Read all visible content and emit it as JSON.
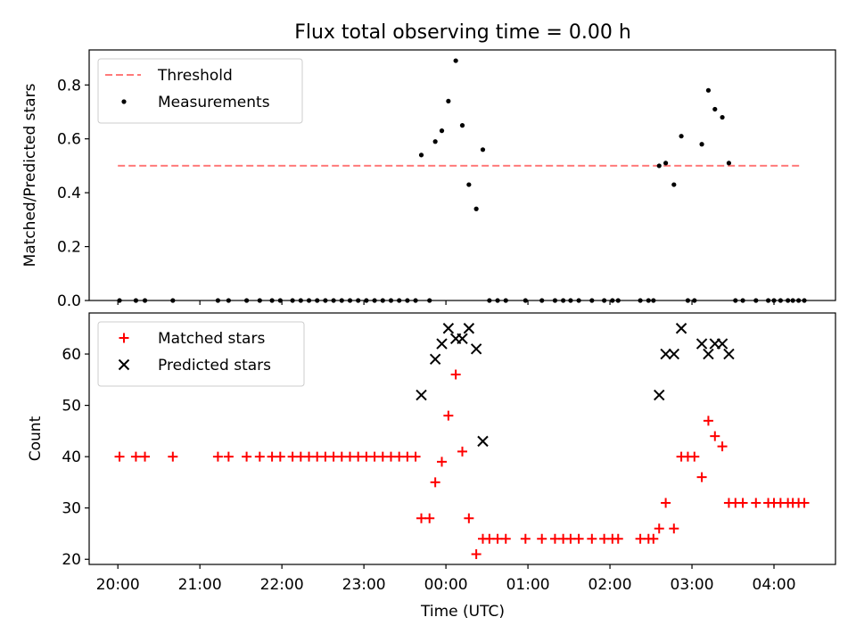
{
  "chart_data": [
    {
      "type": "scatter",
      "title": "Flux total observing time = 0.00 h",
      "xlabel": "",
      "ylabel": "Matched/Predicted stars",
      "xlim": [
        -0.35,
        8.75
      ],
      "ylim": [
        0,
        0.93
      ],
      "yticks": [
        0.0,
        0.2,
        0.4,
        0.6,
        0.8
      ],
      "ytick_labels": [
        "0.0",
        "0.2",
        "0.4",
        "0.6",
        "0.8"
      ],
      "legend_position": "upper-left",
      "threshold": {
        "name": "Threshold",
        "value": 0.5,
        "x_range": [
          0,
          8.33
        ],
        "color": "#ff7a7a",
        "style": "dashed"
      },
      "series": [
        {
          "name": "Measurements",
          "color": "#000000",
          "marker": "dot",
          "points": [
            {
              "x": 0.02,
              "y": 0.0
            },
            {
              "x": 0.22,
              "y": 0.0
            },
            {
              "x": 0.33,
              "y": 0.0
            },
            {
              "x": 0.67,
              "y": 0.0
            },
            {
              "x": 1.22,
              "y": 0.0
            },
            {
              "x": 1.35,
              "y": 0.0
            },
            {
              "x": 1.57,
              "y": 0.0
            },
            {
              "x": 1.73,
              "y": 0.0
            },
            {
              "x": 1.88,
              "y": 0.0
            },
            {
              "x": 1.98,
              "y": 0.0
            },
            {
              "x": 2.13,
              "y": 0.0
            },
            {
              "x": 2.23,
              "y": 0.0
            },
            {
              "x": 2.33,
              "y": 0.0
            },
            {
              "x": 2.43,
              "y": 0.0
            },
            {
              "x": 2.53,
              "y": 0.0
            },
            {
              "x": 2.63,
              "y": 0.0
            },
            {
              "x": 2.73,
              "y": 0.0
            },
            {
              "x": 2.83,
              "y": 0.0
            },
            {
              "x": 2.93,
              "y": 0.0
            },
            {
              "x": 3.03,
              "y": 0.0
            },
            {
              "x": 3.13,
              "y": 0.0
            },
            {
              "x": 3.23,
              "y": 0.0
            },
            {
              "x": 3.33,
              "y": 0.0
            },
            {
              "x": 3.43,
              "y": 0.0
            },
            {
              "x": 3.53,
              "y": 0.0
            },
            {
              "x": 3.63,
              "y": 0.0
            },
            {
              "x": 3.7,
              "y": 0.54
            },
            {
              "x": 3.8,
              "y": 0.0
            },
            {
              "x": 3.87,
              "y": 0.59
            },
            {
              "x": 3.95,
              "y": 0.63
            },
            {
              "x": 4.03,
              "y": 0.74
            },
            {
              "x": 4.12,
              "y": 0.89
            },
            {
              "x": 4.2,
              "y": 0.65
            },
            {
              "x": 4.28,
              "y": 0.43
            },
            {
              "x": 4.37,
              "y": 0.34
            },
            {
              "x": 4.45,
              "y": 0.56
            },
            {
              "x": 4.53,
              "y": 0.0
            },
            {
              "x": 4.63,
              "y": 0.0
            },
            {
              "x": 4.73,
              "y": 0.0
            },
            {
              "x": 4.97,
              "y": 0.0
            },
            {
              "x": 5.17,
              "y": 0.0
            },
            {
              "x": 5.33,
              "y": 0.0
            },
            {
              "x": 5.43,
              "y": 0.0
            },
            {
              "x": 5.52,
              "y": 0.0
            },
            {
              "x": 5.62,
              "y": 0.0
            },
            {
              "x": 5.78,
              "y": 0.0
            },
            {
              "x": 5.93,
              "y": 0.0
            },
            {
              "x": 6.03,
              "y": 0.0
            },
            {
              "x": 6.1,
              "y": 0.0
            },
            {
              "x": 6.37,
              "y": 0.0
            },
            {
              "x": 6.47,
              "y": 0.0
            },
            {
              "x": 6.53,
              "y": 0.0
            },
            {
              "x": 6.6,
              "y": 0.5
            },
            {
              "x": 6.68,
              "y": 0.51
            },
            {
              "x": 6.78,
              "y": 0.43
            },
            {
              "x": 6.87,
              "y": 0.61
            },
            {
              "x": 6.95,
              "y": 0.0
            },
            {
              "x": 7.03,
              "y": 0.0
            },
            {
              "x": 7.12,
              "y": 0.58
            },
            {
              "x": 7.2,
              "y": 0.78
            },
            {
              "x": 7.28,
              "y": 0.71
            },
            {
              "x": 7.37,
              "y": 0.68
            },
            {
              "x": 7.45,
              "y": 0.51
            },
            {
              "x": 7.53,
              "y": 0.0
            },
            {
              "x": 7.62,
              "y": 0.0
            },
            {
              "x": 7.78,
              "y": 0.0
            },
            {
              "x": 7.93,
              "y": 0.0
            },
            {
              "x": 8.0,
              "y": 0.0
            },
            {
              "x": 8.08,
              "y": 0.0
            },
            {
              "x": 8.17,
              "y": 0.0
            },
            {
              "x": 8.23,
              "y": 0.0
            },
            {
              "x": 8.3,
              "y": 0.0
            },
            {
              "x": 8.37,
              "y": 0.0
            }
          ]
        }
      ]
    },
    {
      "type": "scatter",
      "title": "",
      "xlabel": "Time (UTC)",
      "ylabel": "Count",
      "xlim": [
        -0.35,
        8.75
      ],
      "ylim": [
        19,
        68
      ],
      "yticks": [
        20,
        30,
        40,
        50,
        60
      ],
      "ytick_labels": [
        "20",
        "30",
        "40",
        "50",
        "60"
      ],
      "xticks": [
        0,
        1,
        2,
        3,
        4,
        5,
        6,
        7,
        8
      ],
      "xtick_labels": [
        "20:00",
        "21:00",
        "22:00",
        "23:00",
        "00:00",
        "01:00",
        "02:00",
        "03:00",
        "04:00"
      ],
      "legend_position": "upper-left",
      "series": [
        {
          "name": "Matched stars",
          "color": "#ff0000",
          "marker": "plus",
          "points": [
            {
              "x": 0.02,
              "y": 40
            },
            {
              "x": 0.22,
              "y": 40
            },
            {
              "x": 0.33,
              "y": 40
            },
            {
              "x": 0.67,
              "y": 40
            },
            {
              "x": 1.22,
              "y": 40
            },
            {
              "x": 1.35,
              "y": 40
            },
            {
              "x": 1.57,
              "y": 40
            },
            {
              "x": 1.73,
              "y": 40
            },
            {
              "x": 1.88,
              "y": 40
            },
            {
              "x": 1.98,
              "y": 40
            },
            {
              "x": 2.13,
              "y": 40
            },
            {
              "x": 2.23,
              "y": 40
            },
            {
              "x": 2.33,
              "y": 40
            },
            {
              "x": 2.43,
              "y": 40
            },
            {
              "x": 2.53,
              "y": 40
            },
            {
              "x": 2.63,
              "y": 40
            },
            {
              "x": 2.73,
              "y": 40
            },
            {
              "x": 2.83,
              "y": 40
            },
            {
              "x": 2.93,
              "y": 40
            },
            {
              "x": 3.03,
              "y": 40
            },
            {
              "x": 3.13,
              "y": 40
            },
            {
              "x": 3.23,
              "y": 40
            },
            {
              "x": 3.33,
              "y": 40
            },
            {
              "x": 3.43,
              "y": 40
            },
            {
              "x": 3.53,
              "y": 40
            },
            {
              "x": 3.63,
              "y": 40
            },
            {
              "x": 3.7,
              "y": 28
            },
            {
              "x": 3.8,
              "y": 28
            },
            {
              "x": 3.87,
              "y": 35
            },
            {
              "x": 3.95,
              "y": 39
            },
            {
              "x": 4.03,
              "y": 48
            },
            {
              "x": 4.12,
              "y": 56
            },
            {
              "x": 4.2,
              "y": 41
            },
            {
              "x": 4.28,
              "y": 28
            },
            {
              "x": 4.37,
              "y": 21
            },
            {
              "x": 4.45,
              "y": 24
            },
            {
              "x": 4.53,
              "y": 24
            },
            {
              "x": 4.63,
              "y": 24
            },
            {
              "x": 4.73,
              "y": 24
            },
            {
              "x": 4.97,
              "y": 24
            },
            {
              "x": 5.17,
              "y": 24
            },
            {
              "x": 5.33,
              "y": 24
            },
            {
              "x": 5.43,
              "y": 24
            },
            {
              "x": 5.52,
              "y": 24
            },
            {
              "x": 5.62,
              "y": 24
            },
            {
              "x": 5.78,
              "y": 24
            },
            {
              "x": 5.93,
              "y": 24
            },
            {
              "x": 6.03,
              "y": 24
            },
            {
              "x": 6.1,
              "y": 24
            },
            {
              "x": 6.37,
              "y": 24
            },
            {
              "x": 6.47,
              "y": 24
            },
            {
              "x": 6.53,
              "y": 24
            },
            {
              "x": 6.6,
              "y": 26
            },
            {
              "x": 6.68,
              "y": 31
            },
            {
              "x": 6.78,
              "y": 26
            },
            {
              "x": 6.87,
              "y": 40
            },
            {
              "x": 6.95,
              "y": 40
            },
            {
              "x": 7.03,
              "y": 40
            },
            {
              "x": 7.12,
              "y": 36
            },
            {
              "x": 7.2,
              "y": 47
            },
            {
              "x": 7.28,
              "y": 44
            },
            {
              "x": 7.37,
              "y": 42
            },
            {
              "x": 7.45,
              "y": 31
            },
            {
              "x": 7.53,
              "y": 31
            },
            {
              "x": 7.62,
              "y": 31
            },
            {
              "x": 7.78,
              "y": 31
            },
            {
              "x": 7.93,
              "y": 31
            },
            {
              "x": 8.0,
              "y": 31
            },
            {
              "x": 8.08,
              "y": 31
            },
            {
              "x": 8.17,
              "y": 31
            },
            {
              "x": 8.23,
              "y": 31
            },
            {
              "x": 8.3,
              "y": 31
            },
            {
              "x": 8.37,
              "y": 31
            }
          ]
        },
        {
          "name": "Predicted stars",
          "color": "#000000",
          "marker": "x",
          "points": [
            {
              "x": 3.7,
              "y": 52
            },
            {
              "x": 3.87,
              "y": 59
            },
            {
              "x": 3.95,
              "y": 62
            },
            {
              "x": 4.03,
              "y": 65
            },
            {
              "x": 4.12,
              "y": 63
            },
            {
              "x": 4.2,
              "y": 63
            },
            {
              "x": 4.28,
              "y": 65
            },
            {
              "x": 4.37,
              "y": 61
            },
            {
              "x": 4.45,
              "y": 43
            },
            {
              "x": 6.6,
              "y": 52
            },
            {
              "x": 6.68,
              "y": 60
            },
            {
              "x": 6.78,
              "y": 60
            },
            {
              "x": 6.87,
              "y": 65
            },
            {
              "x": 7.12,
              "y": 62
            },
            {
              "x": 7.2,
              "y": 60
            },
            {
              "x": 7.28,
              "y": 62
            },
            {
              "x": 7.37,
              "y": 62
            },
            {
              "x": 7.45,
              "y": 60
            }
          ]
        }
      ]
    }
  ]
}
